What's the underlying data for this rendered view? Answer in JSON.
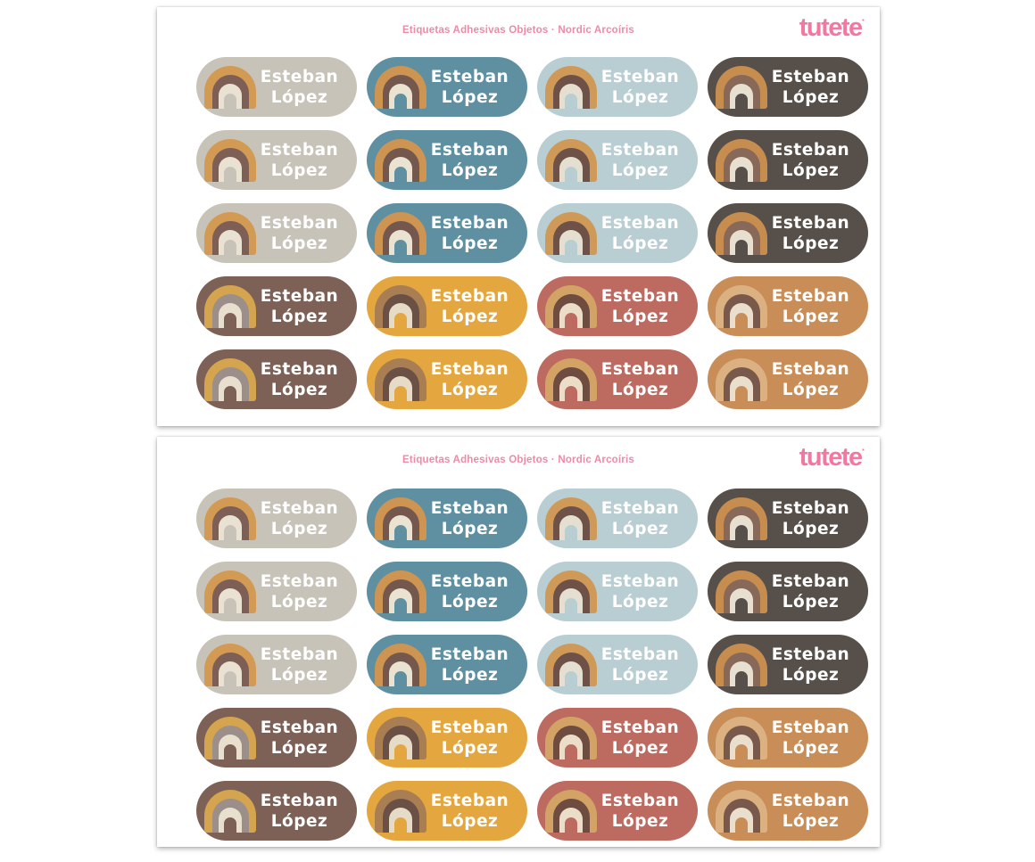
{
  "sheet": {
    "header_title": "Etiquetas Adhesivas Objetos · Nordic Arcoíris",
    "header_title_color": "#ee8aa6",
    "brand": "tutete",
    "brand_mark": "·",
    "brand_color": "#f3779f"
  },
  "label": {
    "first_name": "Esteban",
    "last_name": "López",
    "text_color": "#ffffff"
  },
  "color_schemes": {
    "beige": {
      "bg": "#c8c3b8",
      "arc_outer": "#d29a52",
      "arc_mid": "#7d5f55",
      "arc_inner": "#e9e2d3"
    },
    "teal": {
      "bg": "#5e90a2",
      "arc_outer": "#cd9452",
      "arc_mid": "#74584e",
      "arc_inner": "#ebe3d2"
    },
    "lightblue": {
      "bg": "#b8ced2",
      "arc_outer": "#cf9a58",
      "arc_mid": "#6f5247",
      "arc_inner": "#e5dfd2"
    },
    "darktaupe": {
      "bg": "#57504a",
      "arc_outer": "#c78d4f",
      "arc_mid": "#886858",
      "arc_inner": "#e7dfd0"
    },
    "mauve": {
      "bg": "#7d6156",
      "arc_outer": "#d4a44f",
      "arc_mid": "#9c8e88",
      "arc_inner": "#e9dfcf"
    },
    "mustard": {
      "bg": "#e4a73f",
      "arc_outer": "#a97e52",
      "arc_mid": "#6b5046",
      "arc_inner": "#e6dbc6"
    },
    "terracotta": {
      "bg": "#bd6a61",
      "arc_outer": "#d2a365",
      "arc_mid": "#6e4c40",
      "arc_inner": "#ecddc8"
    },
    "camel": {
      "bg": "#c98e58",
      "arc_outer": "#dcb181",
      "arc_mid": "#7a594d",
      "arc_inner": "#eadfcc"
    }
  },
  "grid": {
    "rows": [
      [
        "beige",
        "teal",
        "lightblue",
        "darktaupe"
      ],
      [
        "beige",
        "teal",
        "lightblue",
        "darktaupe"
      ],
      [
        "beige",
        "teal",
        "lightblue",
        "darktaupe"
      ],
      [
        "mauve",
        "mustard",
        "terracotta",
        "camel"
      ],
      [
        "mauve",
        "mustard",
        "terracotta",
        "camel"
      ]
    ]
  },
  "sheets": [
    {
      "id": "sheet-1"
    },
    {
      "id": "sheet-2"
    }
  ]
}
